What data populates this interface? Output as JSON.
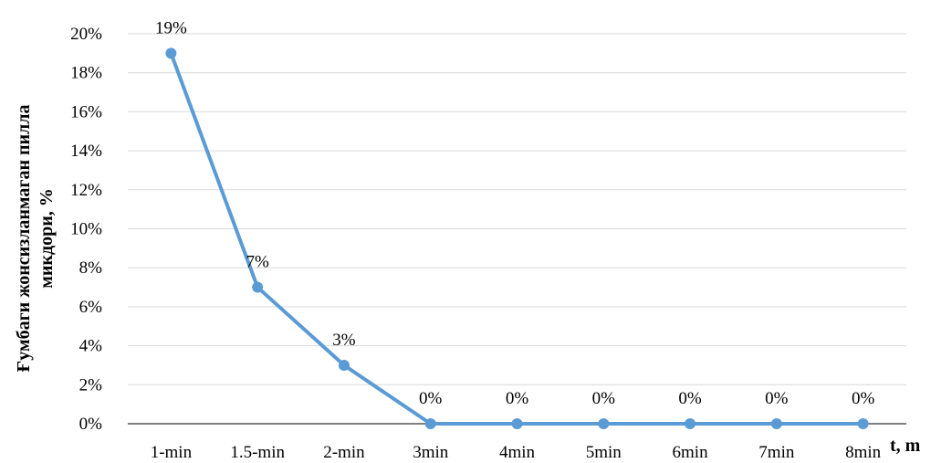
{
  "chart_data": {
    "type": "line",
    "categories": [
      "1-min",
      "1.5-min",
      "2-min",
      "3min",
      "4min",
      "5min",
      "6min",
      "7min",
      "8min"
    ],
    "values": [
      19,
      7,
      3,
      0,
      0,
      0,
      0,
      0,
      0
    ],
    "data_labels": [
      "19%",
      "7%",
      "3%",
      "0%",
      "0%",
      "0%",
      "0%",
      "0%",
      "0%"
    ],
    "yticks": [
      "0%",
      "2%",
      "4%",
      "6%",
      "8%",
      "10%",
      "12%",
      "14%",
      "16%",
      "18%",
      "20%"
    ],
    "ylim": [
      0,
      20
    ],
    "ylabel_line1": "Ғумбаги жонсизланмаган пилла",
    "ylabel_line2": "микдори, %",
    "xlabel": "t, m",
    "grid": true,
    "colors": {
      "line": "#5b9bd5",
      "grid": "#d9d9d9",
      "axis": "#000000"
    }
  }
}
